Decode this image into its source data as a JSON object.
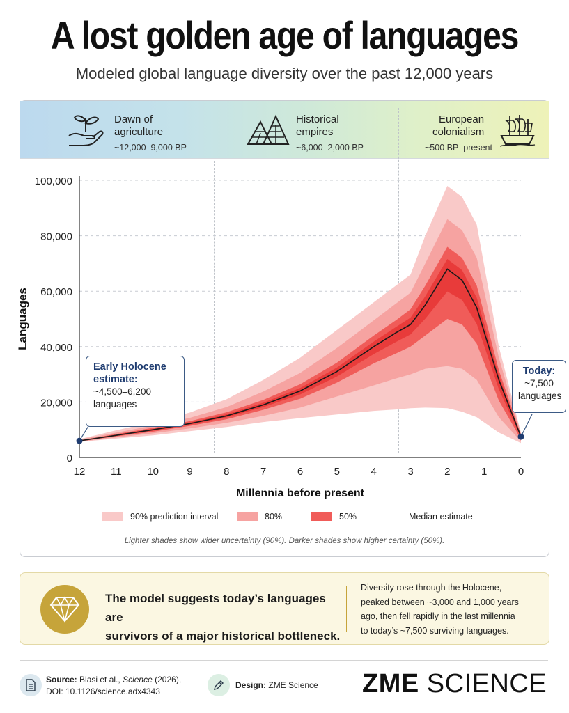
{
  "header": {
    "title": "A lost golden age of languages",
    "subtitle": "Modeled global language diversity over the past 12,000 years"
  },
  "eras": [
    {
      "label_1": "Dawn of",
      "label_2": "agriculture",
      "range": "~12,000–9,000 BP",
      "icon": "seedling-hand-icon"
    },
    {
      "label_1": "Historical",
      "label_2": "empires",
      "range": "~6,000–2,000 BP",
      "icon": "pyramids-icon"
    },
    {
      "label_1": "European",
      "label_2": "colonialism",
      "range": "~500 BP–present",
      "icon": "sailing-ship-icon"
    }
  ],
  "callouts": {
    "early": {
      "head_1": "Early Holocene",
      "head_2": "estimate:",
      "body_1": "~4,500–6,200",
      "body_2": "languages"
    },
    "today": {
      "head": "Today:",
      "body_1": "~7,500",
      "body_2": "languages"
    }
  },
  "legend": {
    "p90": "90% prediction interval",
    "p80": "80%",
    "p50": "50%",
    "median": "Median estimate"
  },
  "note": "Lighter shades show wider uncertainty (90%). Darker shades show higher certainty (50%).",
  "summary": {
    "main_1": "The model suggests today’s languages are",
    "main_2": "survivors of a major historical bottleneck.",
    "side_1": "Diversity rose through the Holocene,",
    "side_2": "peaked between ~3,000 and 1,000 years",
    "side_3": "ago, then fell rapidly in the last millennia",
    "side_4": "to today’s ~7,500 surviving languages."
  },
  "footer": {
    "source_label": "Source:",
    "source_text": "Blasi et al.,",
    "source_journal": "Science",
    "source_year": "(2026),",
    "doi": "DOI: 10.1126/science.adx4343",
    "design_label": "Design:",
    "design_text": "ZME Science",
    "brand_bold": "ZME",
    "brand_light": "SCIENCE"
  },
  "colors": {
    "p90": "#f9c9c8",
    "p80": "#f6a3a1",
    "p50": "#f05c59",
    "core": "#e83b3a",
    "median": "#1a1a1a",
    "marker": "#1f3c70"
  },
  "chart_data": {
    "type": "area",
    "xlabel": "Millennia before present",
    "ylabel": "Languages",
    "xlim": [
      12,
      0
    ],
    "ylim": [
      0,
      100000
    ],
    "x_ticks": [
      12,
      11,
      10,
      9,
      8,
      7,
      6,
      5,
      4,
      3,
      2,
      1,
      0
    ],
    "y_ticks": [
      0,
      20000,
      40000,
      60000,
      80000,
      100000
    ],
    "y_tick_labels": [
      "0",
      "20,000",
      "40,000",
      "60,000",
      "80,000",
      "100,000"
    ],
    "grid": true,
    "x": [
      12,
      11,
      10,
      9,
      8,
      7,
      6,
      5,
      4,
      3.4,
      3,
      2.6,
      2,
      1.6,
      1.2,
      0.6,
      0
    ],
    "series": [
      {
        "name": "Median estimate",
        "values": [
          6000,
          8000,
          10000,
          12200,
          15000,
          19000,
          24000,
          31000,
          40000,
          45000,
          48000,
          55000,
          68000,
          64000,
          54000,
          28000,
          7500
        ]
      },
      {
        "name": "90% prediction interval",
        "lower": [
          5600,
          6800,
          8000,
          9500,
          11000,
          12800,
          14200,
          15500,
          16800,
          17300,
          17800,
          18000,
          17800,
          16500,
          14500,
          9000,
          5200
        ],
        "upper": [
          6600,
          9800,
          12800,
          16200,
          21000,
          28000,
          36000,
          46000,
          56000,
          62000,
          66000,
          80000,
          98000,
          94000,
          84000,
          40000,
          9000
        ]
      },
      {
        "name": "80%",
        "lower": [
          5700,
          7200,
          8700,
          10500,
          12500,
          15000,
          18000,
          22000,
          26000,
          28500,
          30000,
          32000,
          33000,
          32000,
          28000,
          14500,
          5800
        ]
      },
      {
        "name": "50%",
        "lower": [
          5850,
          7600,
          9300,
          11400,
          13800,
          17200,
          21200,
          27000,
          34000,
          37500,
          40000,
          44000,
          50000,
          48000,
          41000,
          20500,
          6600
        ]
      }
    ],
    "band_upper_80": [
      6400,
      9000,
      11500,
      14300,
      18200,
      23800,
      30500,
      39500,
      49500,
      55500,
      59500,
      70000,
      86000,
      82000,
      72000,
      36000,
      8600
    ],
    "band_upper_50": [
      6150,
      8450,
      10700,
      13100,
      16300,
      20800,
      26400,
      34200,
      44000,
      49500,
      53500,
      62000,
      76000,
      72000,
      62000,
      31500,
      8100
    ],
    "annotations": [
      {
        "x": 12,
        "y": 6000,
        "text": "Early Holocene estimate: ~4,500–6,200 languages"
      },
      {
        "x": 0,
        "y": 7500,
        "text": "Today: ~7,500 languages"
      }
    ]
  }
}
